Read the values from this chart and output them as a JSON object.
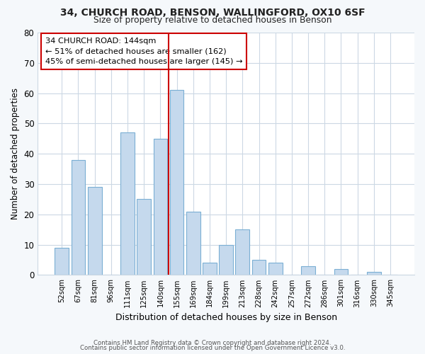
{
  "title1": "34, CHURCH ROAD, BENSON, WALLINGFORD, OX10 6SF",
  "title2": "Size of property relative to detached houses in Benson",
  "xlabel": "Distribution of detached houses by size in Benson",
  "ylabel": "Number of detached properties",
  "categories": [
    "52sqm",
    "67sqm",
    "81sqm",
    "96sqm",
    "111sqm",
    "125sqm",
    "140sqm",
    "155sqm",
    "169sqm",
    "184sqm",
    "199sqm",
    "213sqm",
    "228sqm",
    "242sqm",
    "257sqm",
    "272sqm",
    "286sqm",
    "301sqm",
    "316sqm",
    "330sqm",
    "345sqm"
  ],
  "values": [
    9,
    38,
    29,
    0,
    47,
    25,
    45,
    61,
    21,
    4,
    10,
    15,
    5,
    4,
    0,
    3,
    0,
    2,
    0,
    1,
    0
  ],
  "bar_color": "#c5d9ed",
  "bar_edge_color": "#7bafd4",
  "vline_x_index": 7,
  "vline_color": "#cc0000",
  "annotation_line1": "34 CHURCH ROAD: 144sqm",
  "annotation_line2": "← 51% of detached houses are smaller (162)",
  "annotation_line3": "45% of semi-detached houses are larger (145) →",
  "annotation_box_edge_color": "#cc0000",
  "ylim": [
    0,
    80
  ],
  "yticks": [
    0,
    10,
    20,
    30,
    40,
    50,
    60,
    70,
    80
  ],
  "grid_color": "#ccd8e4",
  "footer1": "Contains HM Land Registry data © Crown copyright and database right 2024.",
  "footer2": "Contains public sector information licensed under the Open Government Licence v3.0.",
  "bg_color": "#ffffff",
  "fig_bg_color": "#f5f8fb"
}
